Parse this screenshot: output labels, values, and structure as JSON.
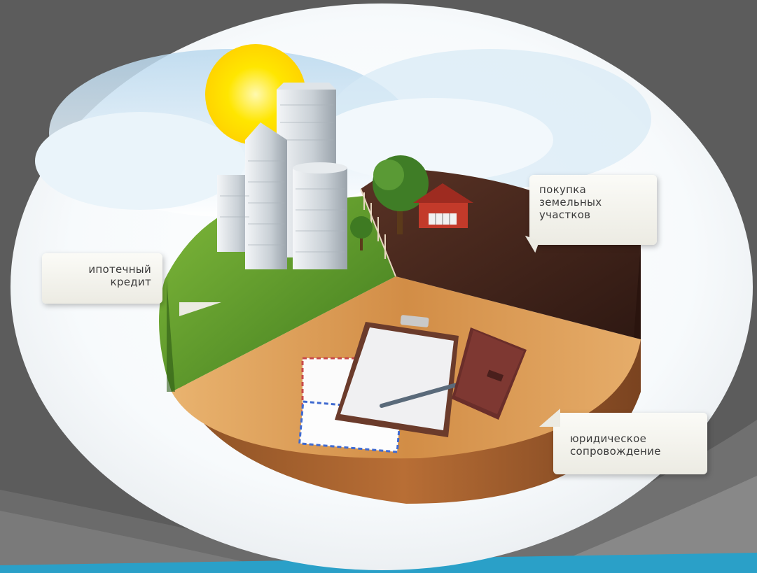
{
  "callouts": {
    "mortgage": {
      "line1": "ипотечный",
      "line2": "кредит"
    },
    "land": {
      "line1": "покупка",
      "line2": "земельных",
      "line3": "участков"
    },
    "legal": {
      "line1": "юридическое",
      "line2": "сопровождение"
    }
  },
  "colors": {
    "background": "#5c5c5c",
    "accent_stripe": "#2aa0c8",
    "grass": "#5f9a2b",
    "soil": "#4a2a1e",
    "wood": "#d79a55",
    "sky": "#cfe6f5",
    "sun": "#ffe21a"
  },
  "icons": [
    "sun-icon",
    "skyscraper-icon",
    "tree-icon",
    "house-icon",
    "clipboard-icon",
    "pen-icon",
    "notebook-icon",
    "envelope-icon"
  ]
}
